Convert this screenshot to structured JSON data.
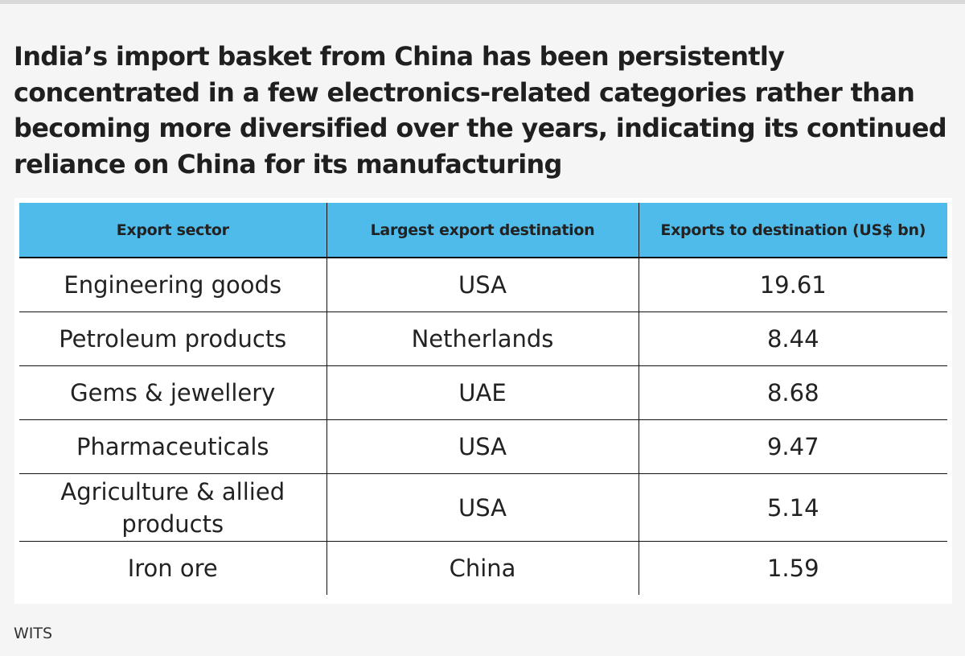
{
  "title": "India’s import basket from China has been persistently concentrated in a few electronics-related categories rather than becoming more diversified over the years, indicating its continued reliance on China for its manufacturing",
  "table": {
    "headers": [
      "Export sector",
      "Largest export destination",
      "Exports to destination (US$ bn)"
    ],
    "rows": [
      [
        "Engineering goods",
        "USA",
        "19.61"
      ],
      [
        "Petroleum products",
        "Netherlands",
        "8.44"
      ],
      [
        "Gems & jewellery",
        "UAE",
        "8.68"
      ],
      [
        "Pharmaceuticals",
        "USA",
        "9.47"
      ],
      [
        "Agriculture & allied products",
        "USA",
        "5.14"
      ],
      [
        "Iron ore",
        "China",
        "1.59"
      ]
    ]
  },
  "source": "WITS",
  "colors": {
    "header_bg": "#4fbbeb",
    "page_bg": "#f5f5f5",
    "text": "#222222"
  }
}
